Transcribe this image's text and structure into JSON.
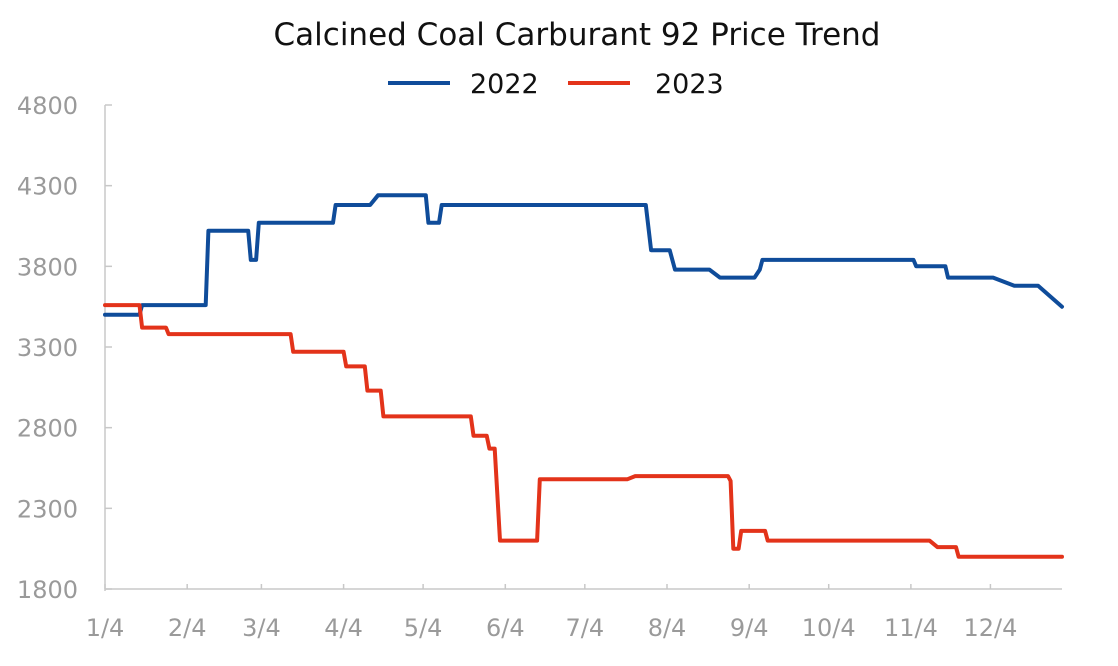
{
  "chart_data": {
    "type": "line",
    "title": "Calcined Coal Carburant 92 Price Trend",
    "xlabel": "",
    "ylabel": "",
    "x_tick_labels": [
      "1/4",
      "2/4",
      "3/4",
      "4/4",
      "5/4",
      "6/4",
      "7/4",
      "8/4",
      "9/4",
      "10/4",
      "11/4",
      "12/4"
    ],
    "y_ticks": [
      1800,
      2300,
      2800,
      3300,
      3800,
      4300,
      4800
    ],
    "ylim": [
      1800,
      4800
    ],
    "x_domain": [
      "1/4",
      "12/31"
    ],
    "legend_position": "top-center",
    "grid": false,
    "series": [
      {
        "name": "2022",
        "color": "#0f4c9a",
        "points": [
          [
            "1/4",
            3500
          ],
          [
            "1/17",
            3500
          ],
          [
            "1/18",
            3560
          ],
          [
            "2/11",
            3560
          ],
          [
            "2/12",
            4020
          ],
          [
            "2/27",
            4020
          ],
          [
            "2/28",
            3840
          ],
          [
            "3/2",
            3840
          ],
          [
            "3/3",
            4070
          ],
          [
            "3/31",
            4070
          ],
          [
            "4/1",
            4180
          ],
          [
            "4/14",
            4180
          ],
          [
            "4/17",
            4240
          ],
          [
            "5/5",
            4240
          ],
          [
            "5/6",
            4070
          ],
          [
            "5/10",
            4070
          ],
          [
            "5/11",
            4180
          ],
          [
            "7/27",
            4180
          ],
          [
            "7/29",
            3900
          ],
          [
            "8/5",
            3900
          ],
          [
            "8/7",
            3780
          ],
          [
            "8/20",
            3780
          ],
          [
            "8/24",
            3730
          ],
          [
            "9/6",
            3730
          ],
          [
            "9/8",
            3780
          ],
          [
            "9/9",
            3840
          ],
          [
            "11/5",
            3840
          ],
          [
            "11/6",
            3800
          ],
          [
            "11/17",
            3800
          ],
          [
            "11/18",
            3730
          ],
          [
            "12/5",
            3730
          ],
          [
            "12/13",
            3680
          ],
          [
            "12/22",
            3680
          ],
          [
            "12/31",
            3550
          ]
        ]
      },
      {
        "name": "2023",
        "color": "#e3331a",
        "points": [
          [
            "1/4",
            3560
          ],
          [
            "1/17",
            3560
          ],
          [
            "1/18",
            3420
          ],
          [
            "1/27",
            3420
          ],
          [
            "1/28",
            3380
          ],
          [
            "3/15",
            3380
          ],
          [
            "3/16",
            3270
          ],
          [
            "4/4",
            3270
          ],
          [
            "4/5",
            3180
          ],
          [
            "4/12",
            3180
          ],
          [
            "4/13",
            3030
          ],
          [
            "4/18",
            3030
          ],
          [
            "4/19",
            2870
          ],
          [
            "5/22",
            2870
          ],
          [
            "5/23",
            2750
          ],
          [
            "5/28",
            2750
          ],
          [
            "5/29",
            2670
          ],
          [
            "5/31",
            2670
          ],
          [
            "6/2",
            2100
          ],
          [
            "6/16",
            2100
          ],
          [
            "6/17",
            2480
          ],
          [
            "7/20",
            2480
          ],
          [
            "7/23",
            2500
          ],
          [
            "8/27",
            2500
          ],
          [
            "8/28",
            2470
          ],
          [
            "8/29",
            2050
          ],
          [
            "8/31",
            2050
          ],
          [
            "9/1",
            2160
          ],
          [
            "9/10",
            2160
          ],
          [
            "9/11",
            2100
          ],
          [
            "11/11",
            2100
          ],
          [
            "11/14",
            2060
          ],
          [
            "11/21",
            2060
          ],
          [
            "11/22",
            2000
          ],
          [
            "12/31",
            2000
          ]
        ]
      }
    ]
  }
}
